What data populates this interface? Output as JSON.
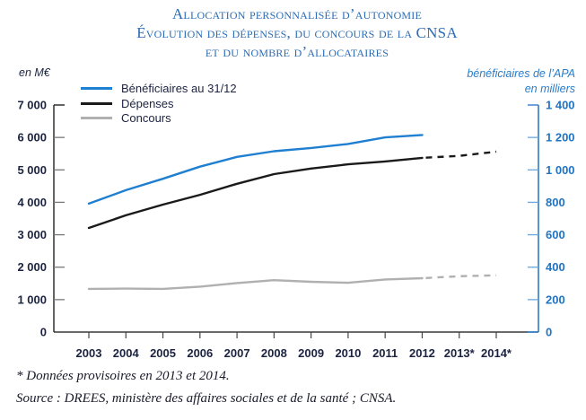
{
  "title": {
    "line1": "Allocation personnalisée d’autonomie",
    "line2": "Évolution des dépenses, du concours de la CNSA",
    "line3": "et du nombre d’allocataires"
  },
  "axes": {
    "left_unit": "en M€",
    "right_unit_line1": "bénéficiaires de l’APA",
    "right_unit_line2": "en milliers"
  },
  "legend": [
    {
      "label": "Bénéficiaires au 31/12",
      "color": "#1f7fd0"
    },
    {
      "label": "Dépenses",
      "color": "#1a1a1a"
    },
    {
      "label": "Concours",
      "color": "#b0b0b0"
    }
  ],
  "notes": {
    "note1": "* Données provisoires en 2013 et 2014.",
    "note2": "Source : DREES, ministère des affaires sociales et de la santé ; CNSA."
  },
  "chart_data": {
    "type": "line",
    "title": "Allocation personnalisée d’autonomie — Évolution des dépenses, du concours de la CNSA et du nombre d’allocataires",
    "categories": [
      "2003",
      "2004",
      "2005",
      "2006",
      "2007",
      "2008",
      "2009",
      "2010",
      "2011",
      "2012",
      "2013*",
      "2014*"
    ],
    "xlabel": "",
    "left_axis": {
      "label": "en M€",
      "ylim": [
        0,
        7000
      ],
      "ticks": [
        0,
        1000,
        2000,
        3000,
        4000,
        5000,
        6000,
        7000
      ],
      "tick_labels": [
        "0",
        "1 000",
        "2 000",
        "3 000",
        "4 000",
        "5 000",
        "6 000",
        "7 000"
      ],
      "color": "#1c2340"
    },
    "right_axis": {
      "label": "bénéficiaires de l’APA en milliers",
      "ylim": [
        0,
        1400
      ],
      "ticks": [
        0,
        200,
        400,
        600,
        800,
        1000,
        1200,
        1400
      ],
      "tick_labels": [
        "0",
        "200",
        "400",
        "600",
        "800",
        "1 000",
        "1 200",
        "1 400"
      ],
      "color": "#1f74c4"
    },
    "series": [
      {
        "name": "Bénéficiaires au 31/12",
        "key": "beneficiaires",
        "axis": "right",
        "color": "#1f7fd0",
        "values": [
          792,
          875,
          945,
          1020,
          1080,
          1115,
          1135,
          1160,
          1200,
          1215,
          null,
          null
        ],
        "projected_from_index": null
      },
      {
        "name": "Dépenses",
        "key": "depenses",
        "axis": "left",
        "color": "#1a1a1a",
        "values": [
          3210,
          3600,
          3930,
          4230,
          4570,
          4870,
          5040,
          5170,
          5260,
          5370,
          5430,
          5560
        ],
        "projected_from_index": 9
      },
      {
        "name": "Concours",
        "key": "concours",
        "axis": "left",
        "color": "#b0b0b0",
        "values": [
          1330,
          1340,
          1330,
          1400,
          1510,
          1600,
          1550,
          1520,
          1620,
          1660,
          1720,
          1750
        ],
        "projected_from_index": 9
      }
    ],
    "legend_position": "top-left",
    "grid": false,
    "annotations": [
      "* Données provisoires en 2013 et 2014."
    ]
  }
}
